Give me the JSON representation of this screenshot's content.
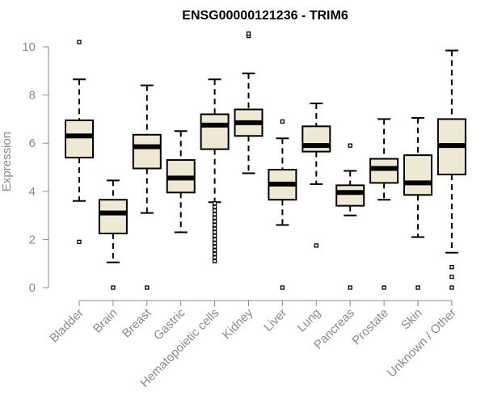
{
  "chart_data": {
    "type": "boxplot",
    "title": "ENSG00000121236 - TRIM6",
    "ylabel": "Expression",
    "xlabel": "",
    "ylim": [
      0,
      10
    ],
    "yticks": [
      0,
      2,
      4,
      6,
      8,
      10
    ],
    "grid": false,
    "legend": "none",
    "colors": {
      "box_fill": "#efe8d2",
      "box_stroke": "#000000",
      "median": "#000000",
      "axis": "#8a8a8a",
      "text": "#8a8a8a",
      "title": "#000000"
    },
    "categories": [
      "Bladder",
      "Brain",
      "Breast",
      "Gastric",
      "Hematopoietic cells",
      "Kidney",
      "Liver",
      "Lung",
      "Pancreas",
      "Prostate",
      "Skin",
      "Unknown / Other"
    ],
    "boxes": [
      {
        "category": "Bladder",
        "whisker_low": 3.6,
        "q1": 5.4,
        "median": 6.3,
        "q3": 6.95,
        "whisker_high": 8.65,
        "outliers": [
          1.9,
          10.2
        ]
      },
      {
        "category": "Brain",
        "whisker_low": 1.05,
        "q1": 2.25,
        "median": 3.1,
        "q3": 3.65,
        "whisker_high": 4.45,
        "outliers": [
          0
        ]
      },
      {
        "category": "Breast",
        "whisker_low": 3.1,
        "q1": 4.95,
        "median": 5.85,
        "q3": 6.35,
        "whisker_high": 8.4,
        "outliers": [
          0
        ]
      },
      {
        "category": "Gastric",
        "whisker_low": 2.3,
        "q1": 3.95,
        "median": 4.55,
        "q3": 5.3,
        "whisker_high": 6.5,
        "outliers": []
      },
      {
        "category": "Hematopoietic cells",
        "whisker_low": 3.55,
        "q1": 5.75,
        "median": 6.75,
        "q3": 7.2,
        "whisker_high": 8.65,
        "outliers": [
          3.5,
          3.35,
          3.2,
          3.05,
          2.9,
          2.75,
          2.6,
          2.45,
          2.3,
          2.15,
          2.0,
          1.85,
          1.7,
          1.55,
          1.4,
          1.25,
          1.1
        ]
      },
      {
        "category": "Kidney",
        "whisker_low": 4.75,
        "q1": 6.3,
        "median": 6.85,
        "q3": 7.4,
        "whisker_high": 8.9,
        "outliers": [
          10.45,
          10.55
        ]
      },
      {
        "category": "Liver",
        "whisker_low": 2.6,
        "q1": 3.65,
        "median": 4.3,
        "q3": 4.9,
        "whisker_high": 6.2,
        "outliers": [
          6.9,
          0
        ]
      },
      {
        "category": "Lung",
        "whisker_low": 4.3,
        "q1": 5.65,
        "median": 5.9,
        "q3": 6.7,
        "whisker_high": 7.65,
        "outliers": [
          1.75
        ]
      },
      {
        "category": "Pancreas",
        "whisker_low": 3.0,
        "q1": 3.4,
        "median": 3.95,
        "q3": 4.25,
        "whisker_high": 4.85,
        "outliers": [
          5.9,
          0
        ]
      },
      {
        "category": "Prostate",
        "whisker_low": 3.65,
        "q1": 4.35,
        "median": 4.95,
        "q3": 5.35,
        "whisker_high": 7.0,
        "outliers": [
          0
        ]
      },
      {
        "category": "Skin",
        "whisker_low": 2.1,
        "q1": 3.85,
        "median": 4.35,
        "q3": 5.5,
        "whisker_high": 7.05,
        "outliers": [
          0
        ]
      },
      {
        "category": "Unknown / Other",
        "whisker_low": 1.45,
        "q1": 4.7,
        "median": 5.9,
        "q3": 7.0,
        "whisker_high": 9.85,
        "outliers": [
          0.85,
          0.45,
          0
        ]
      }
    ]
  }
}
